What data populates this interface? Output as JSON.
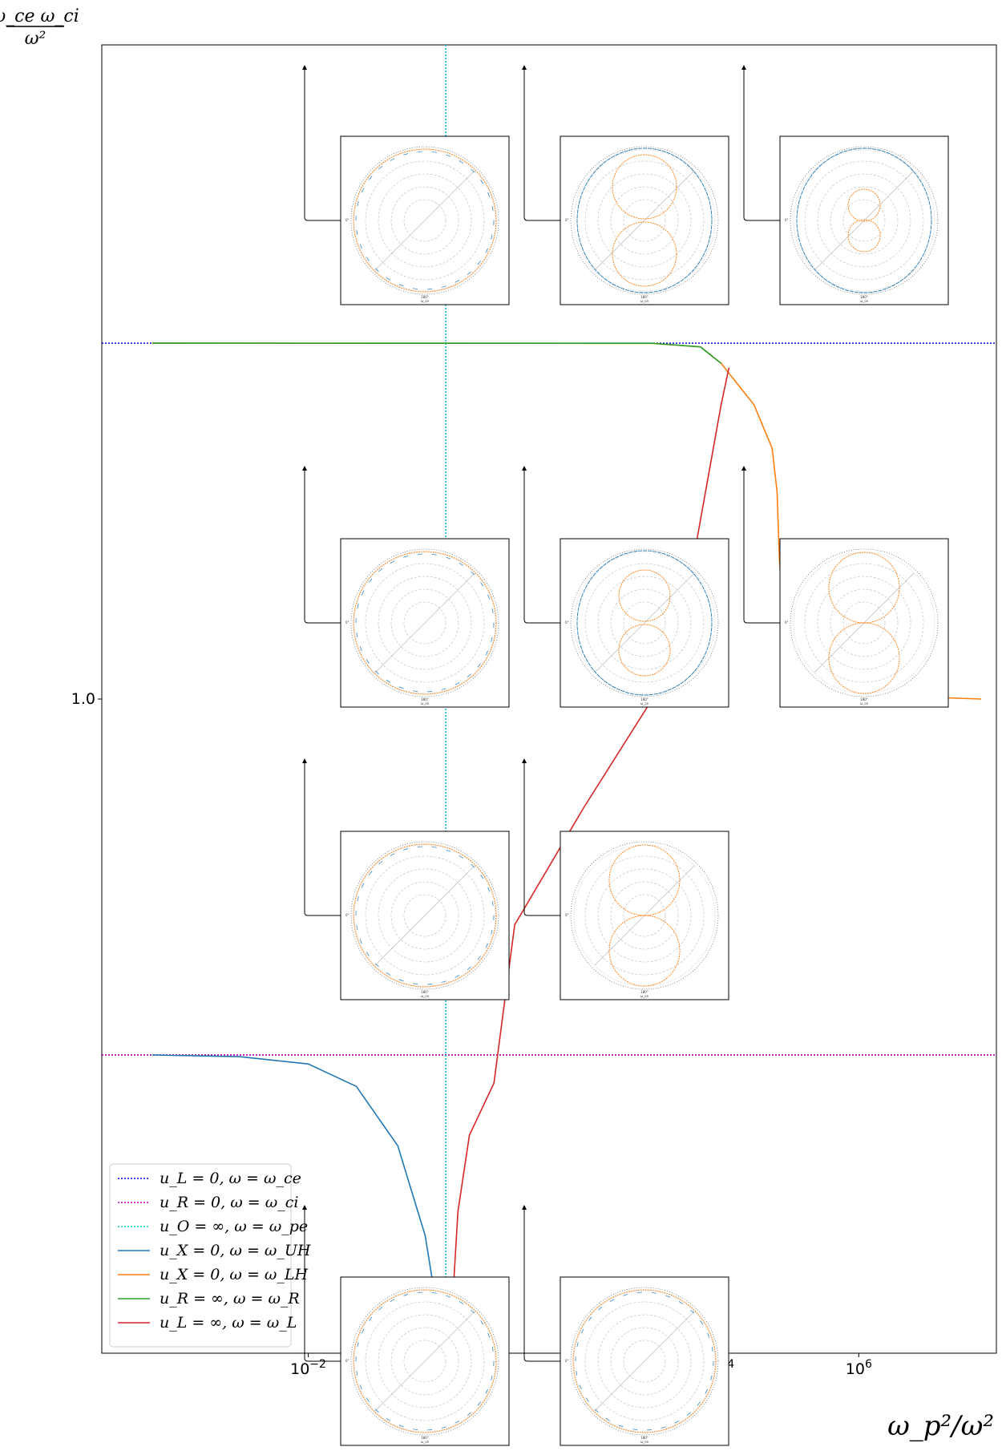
{
  "chart_data": {
    "type": "line",
    "title": "",
    "xlabel": "ω_p²/ω²",
    "ylabel_numerator": "ω_ce ω_ci",
    "ylabel_denominator": "ω²",
    "xscale": "log",
    "yscale": "log",
    "xlim": [
      1e-05,
      100000000
    ],
    "ylim": [
      1e-06,
      1000000.0
    ],
    "x_ticks": [
      {
        "value": 0.01,
        "base": "10",
        "exp": "−2"
      },
      {
        "value": 10000,
        "base": "10",
        "exp": "4"
      },
      {
        "value": 1000000,
        "base": "10",
        "exp": "6"
      }
    ],
    "y_ticks": [
      {
        "value": 1,
        "label": "1.0"
      }
    ],
    "grid": false,
    "legend_position": "lower-left",
    "series": [
      {
        "name": "u_L = 0, ω = ω_ce",
        "color": "#0000cc",
        "style": "dotted",
        "kind": "hline",
        "y": 1836
      },
      {
        "name": "u_R = 0, ω = ω_ci",
        "color": "#aa00aa",
        "style": "dotted",
        "kind": "hline",
        "y": 0.000544
      },
      {
        "name": "u_O = ∞, ω = ω_pe",
        "color": "#17becf",
        "style": "dotted",
        "kind": "vline",
        "x": 1
      },
      {
        "name": "u_X = 0, ω = ω_UH",
        "color": "#1f77b4",
        "style": "solid",
        "points": [
          [
            5.42e-05,
            0.000544
          ],
          [
            0.001,
            0.000525
          ],
          [
            0.01,
            0.00045
          ],
          [
            0.05,
            0.00028
          ],
          [
            0.2,
            8e-05
          ],
          [
            0.5,
            1.2e-05
          ],
          [
            0.9,
            1.2e-06
          ]
        ]
      },
      {
        "name": "u_X = 0, ω = ω_LH",
        "color": "#ff7f0e",
        "style": "solid",
        "points": [
          [
            5.42e-05,
            1836
          ],
          [
            1000,
            1830
          ],
          [
            5000,
            1700
          ],
          [
            10000,
            1200
          ],
          [
            30000,
            500
          ],
          [
            55000,
            200
          ],
          [
            65000,
            80
          ],
          [
            70000,
            20
          ],
          [
            80000,
            5
          ],
          [
            150000,
            1.7
          ],
          [
            1000000,
            1.1
          ],
          [
            60000000,
            1.0
          ]
        ]
      },
      {
        "name": "u_R = ∞, ω = ω_R",
        "color": "#2ca02c",
        "style": "solid",
        "points": [
          [
            5.42e-05,
            1836
          ],
          [
            1000,
            1834
          ],
          [
            5000,
            1700
          ],
          [
            10000,
            1200
          ]
        ]
      },
      {
        "name": "u_L = ∞, ω = ω_L",
        "color": "#d62728",
        "style": "solid",
        "points": [
          [
            1.15,
            1.2e-06
          ],
          [
            1.5,
            2e-05
          ],
          [
            2.2,
            0.0001
          ],
          [
            5,
            0.0003
          ],
          [
            10,
            0.0085
          ],
          [
            100,
            0.1
          ],
          [
            1000,
            1
          ],
          [
            4000,
            20
          ],
          [
            10000,
            500
          ],
          [
            13000,
            1100
          ]
        ]
      }
    ],
    "polar_insets": [
      {
        "row": 1,
        "col": 1,
        "label_left": "0°",
        "label_bottom": "180°",
        "sub": "ω_ce"
      },
      {
        "row": 1,
        "col": 2,
        "label_left": "0°",
        "label_bottom": "180°",
        "sub": "ω_ce"
      },
      {
        "row": 1,
        "col": 3,
        "label_left": "0°",
        "label_bottom": "180°",
        "sub": "ω_ce"
      },
      {
        "row": 2,
        "col": 1,
        "label_left": "0°",
        "label_bottom": "180°",
        "sub": "ω_ce"
      },
      {
        "row": 2,
        "col": 2,
        "label_left": "0°",
        "label_bottom": "180°",
        "sub": "ω_ce"
      },
      {
        "row": 2,
        "col": 3,
        "label_left": "0°",
        "label_bottom": "180°",
        "sub": "ω_ce"
      },
      {
        "row": 3,
        "col": 1,
        "label_left": "0°",
        "label_bottom": "180°",
        "sub": "ω_ce"
      },
      {
        "row": 3,
        "col": 2,
        "label_left": "0°",
        "label_bottom": "180°",
        "sub": "ω_ce"
      },
      {
        "row": 4,
        "col": 1,
        "label_left": "0°",
        "label_bottom": "180°",
        "sub": "ω_ce"
      },
      {
        "row": 4,
        "col": 2,
        "label_left": "0°",
        "label_bottom": "180°",
        "sub": "ω_ce"
      }
    ]
  }
}
